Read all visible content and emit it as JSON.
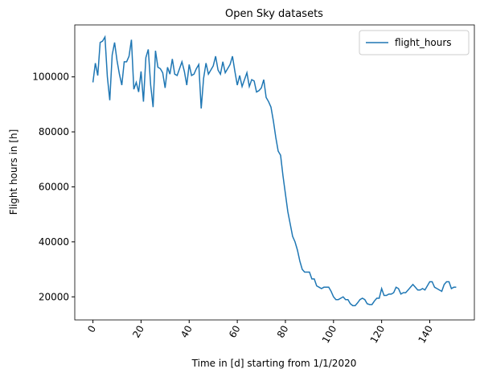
{
  "chart_data": {
    "type": "line",
    "title": "Open Sky datasets",
    "xlabel": "Time in [d] starting from 1/1/2020",
    "ylabel": "Flight hours in [h]",
    "x": [
      0,
      1,
      2,
      3,
      4,
      5,
      6,
      7,
      8,
      9,
      10,
      11,
      12,
      13,
      14,
      15,
      16,
      17,
      18,
      19,
      20,
      21,
      22,
      23,
      24,
      25,
      26,
      27,
      28,
      29,
      30,
      31,
      32,
      33,
      34,
      35,
      36,
      37,
      38,
      39,
      40,
      41,
      42,
      43,
      44,
      45,
      46,
      47,
      48,
      49,
      50,
      51,
      52,
      53,
      54,
      55,
      56,
      57,
      58,
      59,
      60,
      61,
      62,
      63,
      64,
      65,
      66,
      67,
      68,
      69,
      70,
      71,
      72,
      73,
      74,
      75,
      76,
      77,
      78,
      79,
      80,
      81,
      82,
      83,
      84,
      85,
      86,
      87,
      88,
      89,
      90,
      91,
      92,
      93,
      94,
      95,
      96,
      97,
      98,
      99,
      100,
      101,
      102,
      103,
      104,
      105,
      106,
      107,
      108,
      109,
      110,
      111,
      112,
      113,
      114,
      115,
      116,
      117,
      118,
      119,
      120,
      121,
      122,
      123,
      124,
      125,
      126,
      127,
      128,
      129,
      130,
      131,
      132,
      133,
      134,
      135,
      136,
      137,
      138,
      139,
      140,
      141,
      142,
      143,
      144,
      145,
      146,
      147,
      148,
      149,
      150,
      151
    ],
    "series": [
      {
        "name": "flight_hours",
        "color": "#1f77b4",
        "values": [
          98000,
          105000,
          100500,
          112500,
          113000,
          114500,
          100000,
          91500,
          108000,
          112500,
          106000,
          101000,
          97000,
          105500,
          105500,
          107500,
          113500,
          95500,
          98000,
          94500,
          102000,
          91000,
          107000,
          110000,
          97000,
          89000,
          109500,
          103500,
          103000,
          101500,
          96000,
          103500,
          101000,
          106500,
          101000,
          100500,
          103000,
          105500,
          102000,
          97000,
          104500,
          100500,
          101000,
          103000,
          104500,
          88500,
          99500,
          105000,
          101000,
          102500,
          104000,
          107500,
          102500,
          101000,
          105500,
          101500,
          103000,
          104500,
          107500,
          102000,
          97000,
          100500,
          96500,
          99000,
          101500,
          96500,
          99000,
          98500,
          94500,
          95000,
          96000,
          99000,
          92500,
          91000,
          89000,
          84000,
          78000,
          73000,
          71500,
          64000,
          57500,
          51000,
          46500,
          42000,
          40000,
          37000,
          33000,
          30000,
          29000,
          29000,
          29000,
          26500,
          26500,
          24000,
          23500,
          23000,
          23500,
          23500,
          23500,
          22000,
          20000,
          19000,
          19000,
          19500,
          20000,
          19000,
          19000,
          17500,
          16800,
          16800,
          17800,
          19000,
          19500,
          19000,
          17500,
          17200,
          17200,
          18500,
          19500,
          19500,
          23000,
          20500,
          20500,
          21000,
          21000,
          21500,
          23500,
          23000,
          21000,
          21500,
          21500,
          22500,
          23500,
          24500,
          23500,
          22500,
          22500,
          23000,
          22500,
          24000,
          25500,
          25500,
          23500,
          23000,
          22500,
          22000,
          24500,
          25500,
          25500,
          23000,
          23500,
          23500
        ]
      }
    ],
    "xlim": [
      -7.55,
      158.55
    ],
    "ylim": [
      11600,
      118900
    ],
    "xticks": [
      0,
      20,
      40,
      60,
      80,
      100,
      120,
      140
    ],
    "yticks": [
      20000,
      40000,
      60000,
      80000,
      100000
    ],
    "legend": "upper right"
  }
}
